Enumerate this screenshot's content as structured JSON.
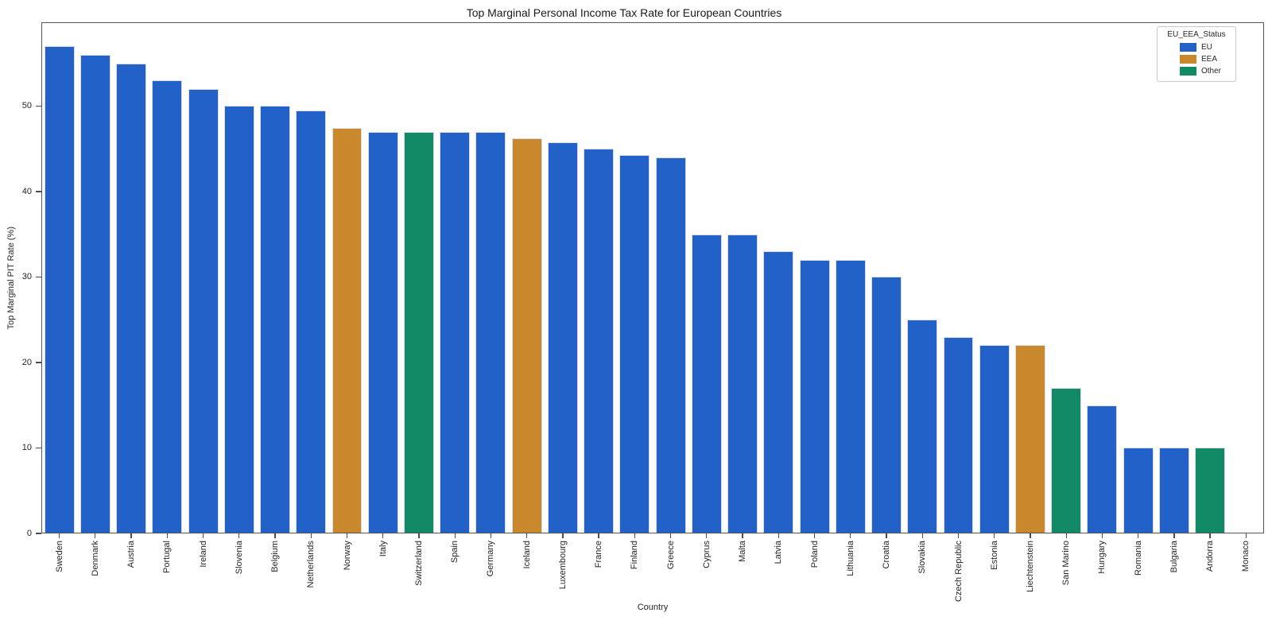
{
  "chart_data": {
    "type": "bar",
    "title": "Top Marginal Personal Income Tax Rate for European Countries",
    "xlabel": "Country",
    "ylabel": "Top Marginal PIT Rate (%)",
    "ylim": [
      0,
      59.8
    ],
    "yticks": [
      0,
      10,
      20,
      30,
      40,
      50
    ],
    "grid": false,
    "legend": {
      "title": "EU_EEA_Status",
      "position": "upper right",
      "entries": [
        {
          "label": "EU",
          "color": "#2161c8"
        },
        {
          "label": "EEA",
          "color": "#c8882b"
        },
        {
          "label": "Other",
          "color": "#128a66"
        }
      ]
    },
    "categories": [
      "Sweden",
      "Denmark",
      "Austria",
      "Portugal",
      "Ireland",
      "Slovenia",
      "Belgium",
      "Netherlands",
      "Norway",
      "Italy",
      "Switzerland",
      "Spain",
      "Germany",
      "Iceland",
      "Luxembourg",
      "France",
      "Finland",
      "Greece",
      "Cyprus",
      "Malta",
      "Latvia",
      "Poland",
      "Lithuania",
      "Croatia",
      "Slovakia",
      "Czech Republic",
      "Estonia",
      "Liechtenstein",
      "San Marino",
      "Hungary",
      "Romania",
      "Bulgaria",
      "Andorra",
      "Monaco"
    ],
    "values": [
      57,
      56,
      55,
      53,
      52,
      50,
      50,
      49.5,
      47.4,
      47,
      47,
      47,
      47,
      46.25,
      45.8,
      45,
      44.25,
      44,
      35,
      35,
      33,
      32,
      32,
      30,
      25,
      23,
      22,
      22,
      17,
      15,
      10,
      10,
      10,
      0
    ],
    "status": [
      "EU",
      "EU",
      "EU",
      "EU",
      "EU",
      "EU",
      "EU",
      "EU",
      "EEA",
      "EU",
      "Other",
      "EU",
      "EU",
      "EEA",
      "EU",
      "EU",
      "EU",
      "EU",
      "EU",
      "EU",
      "EU",
      "EU",
      "EU",
      "EU",
      "EU",
      "EU",
      "EU",
      "EEA",
      "Other",
      "EU",
      "EU",
      "EU",
      "Other",
      "Other"
    ]
  }
}
